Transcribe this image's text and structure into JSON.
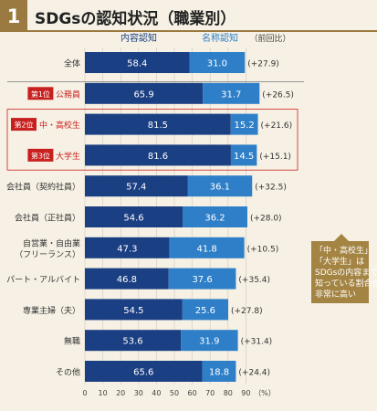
{
  "header": {
    "number": "1",
    "title": "SDGsの認知状況（職業別）"
  },
  "legend": {
    "series1": "内容認知",
    "series2": "名称認知",
    "diff": "（前回比）"
  },
  "callout": {
    "lines": [
      "「中・高校生」",
      "「大学生」は",
      "SDGsの内容まで",
      "知っている割合が",
      "非常に高い"
    ]
  },
  "colors": {
    "series1": "#1b3f83",
    "series2": "#2e7fc8",
    "highlight": "#c8201f",
    "callout": "#a48443"
  },
  "chart_data": {
    "type": "bar",
    "orientation": "horizontal",
    "stacked": true,
    "title": "SDGsの認知状況（職業別）",
    "xlabel": "（%）",
    "xlim": [
      0,
      100
    ],
    "xticks": [
      "0",
      "10",
      "20",
      "30",
      "40",
      "50",
      "60",
      "70",
      "80",
      "90"
    ],
    "categories": [
      {
        "label": "全体",
        "badge": "",
        "diff": "(+27.9)"
      },
      {
        "label": "公務員",
        "badge": "第1位",
        "diff": "(+26.5)"
      },
      {
        "label": "中・高校生",
        "badge": "第2位",
        "diff": "(+21.6)"
      },
      {
        "label": "大学生",
        "badge": "第3位",
        "diff": "(+15.1)"
      },
      {
        "label": "会社員（契約社員）",
        "badge": "",
        "diff": "(+32.5)"
      },
      {
        "label": "会社員（正社員）",
        "badge": "",
        "diff": "(+28.0)"
      },
      {
        "label": "自営業・自由業\n（フリーランス）",
        "badge": "",
        "diff": "(+10.5)"
      },
      {
        "label": "パート・アルバイト",
        "badge": "",
        "diff": "(+35.4)"
      },
      {
        "label": "専業主婦（夫）",
        "badge": "",
        "diff": "(+27.8)"
      },
      {
        "label": "無職",
        "badge": "",
        "diff": "(+31.4)"
      },
      {
        "label": "その他",
        "badge": "",
        "diff": "(+24.4)"
      }
    ],
    "series": [
      {
        "name": "内容認知",
        "values": [
          58.4,
          65.9,
          81.5,
          81.6,
          57.4,
          54.6,
          47.3,
          46.8,
          54.5,
          53.6,
          65.6
        ]
      },
      {
        "name": "名称認知",
        "values": [
          31.0,
          31.7,
          15.2,
          14.5,
          36.1,
          36.2,
          41.8,
          37.6,
          25.6,
          31.9,
          18.8
        ]
      }
    ]
  }
}
